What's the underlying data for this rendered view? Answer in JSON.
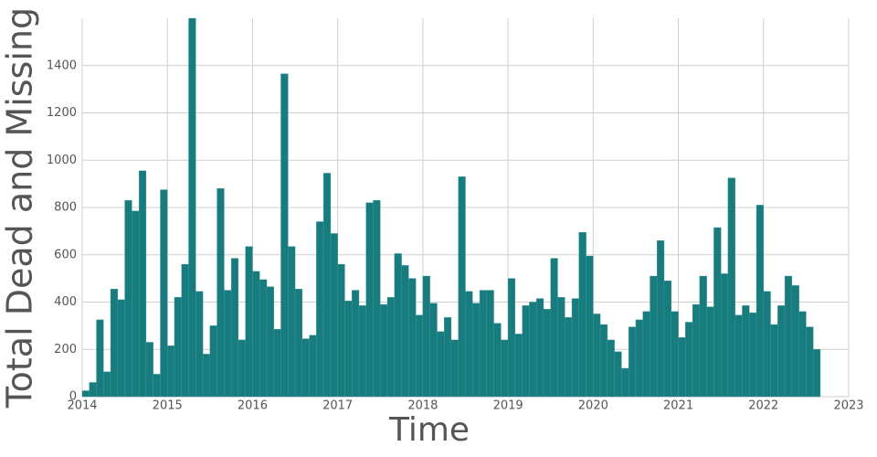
{
  "chart_data": {
    "type": "histogram",
    "x_label": "Time",
    "y_label": "Total Dead and Missing",
    "color": "#187b7d",
    "bins": [
      2014,
      2014.083,
      2014.167,
      2014.25,
      2014.333,
      2014.417,
      2014.5,
      2014.583,
      2014.667,
      2014.75,
      2014.833,
      2014.917,
      2015,
      2015.083,
      2015.167,
      2015.25,
      2015.333,
      2015.417,
      2015.5,
      2015.583,
      2015.667,
      2015.75,
      2015.833,
      2015.917,
      2016,
      2016.083,
      2016.167,
      2016.25,
      2016.333,
      2016.417,
      2016.5,
      2016.583,
      2016.667,
      2016.75,
      2016.833,
      2016.917,
      2017,
      2017.083,
      2017.167,
      2017.25,
      2017.333,
      2017.417,
      2017.5,
      2017.583,
      2017.667,
      2017.75,
      2017.833,
      2017.917,
      2018,
      2018.083,
      2018.167,
      2018.25,
      2018.333,
      2018.417,
      2018.5,
      2018.583,
      2018.667,
      2018.75,
      2018.833,
      2018.917,
      2019,
      2019.083,
      2019.167,
      2019.25,
      2019.333,
      2019.417,
      2019.5,
      2019.583,
      2019.667,
      2019.75,
      2019.833,
      2019.917,
      2020,
      2020.083,
      2020.167,
      2020.25,
      2020.333,
      2020.417,
      2020.5,
      2020.583,
      2020.667,
      2020.75,
      2020.833,
      2020.917,
      2021,
      2021.083,
      2021.167,
      2021.25,
      2021.333,
      2021.417,
      2021.5,
      2021.583,
      2021.667,
      2021.75,
      2021.833,
      2021.917,
      2022,
      2022.083,
      2022.167,
      2022.25,
      2022.333,
      2022.417,
      2022.5,
      2022.583,
      2022.667
    ],
    "values": [
      25,
      60,
      325,
      105,
      455,
      410,
      830,
      785,
      955,
      230,
      95,
      875,
      215,
      420,
      560,
      1600,
      445,
      180,
      300,
      880,
      450,
      585,
      240,
      635,
      530,
      495,
      465,
      285,
      1365,
      635,
      455,
      245,
      260,
      740,
      945,
      690,
      560,
      405,
      450,
      385,
      820,
      830,
      390,
      420,
      605,
      555,
      500,
      345,
      510,
      395,
      275,
      335,
      240,
      930,
      445,
      395,
      450,
      450,
      310,
      240,
      500,
      265,
      385,
      400,
      415,
      370,
      585,
      420,
      335,
      415,
      695,
      595,
      350,
      305,
      240,
      190,
      120,
      295,
      325,
      360,
      510,
      660,
      490,
      360,
      250,
      315,
      390,
      510,
      380,
      715,
      520,
      925,
      345,
      385,
      355,
      810,
      445,
      305,
      385,
      510,
      470,
      360,
      295,
      200
    ],
    "xlim": [
      2014,
      2023
    ],
    "xticks": [
      2014,
      2015,
      2016,
      2017,
      2018,
      2019,
      2020,
      2021,
      2022,
      2023
    ],
    "ylim": [
      0,
      1600
    ],
    "yticks": [
      0,
      200,
      400,
      600,
      800,
      1000,
      1200,
      1400
    ],
    "grid": true
  }
}
